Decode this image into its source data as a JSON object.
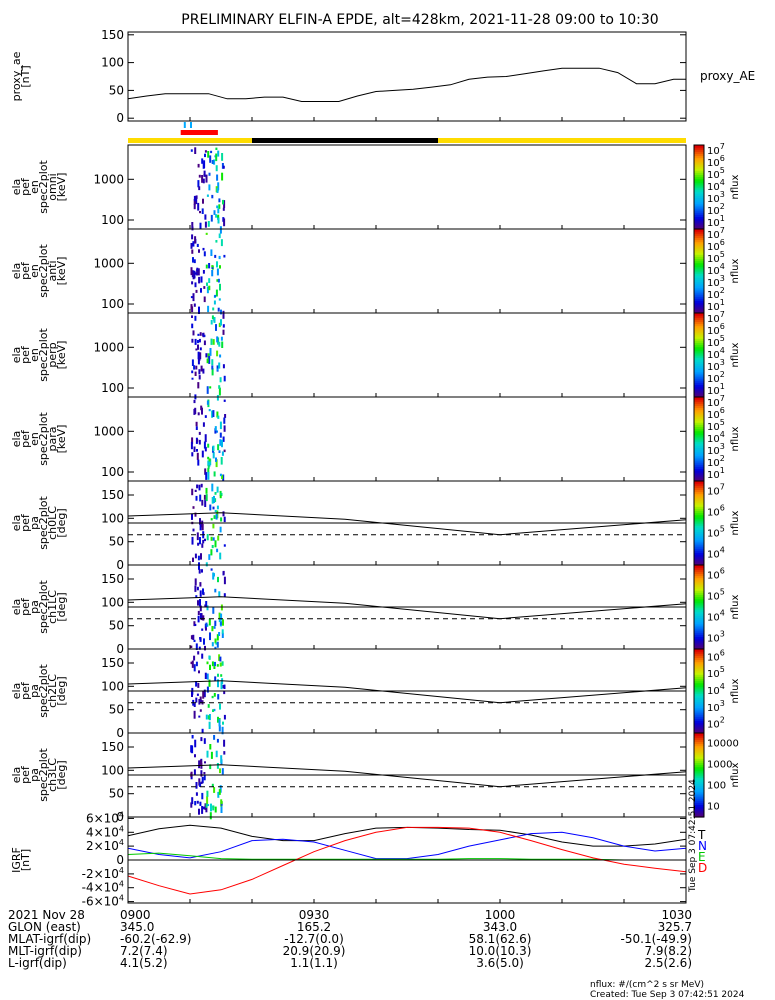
{
  "title": "PRELIMINARY ELFIN-A EPDE, alt=428km, 2021-11-28 09:00 to 10:30",
  "chart_data": [
    {
      "id": "proxy_ae",
      "type": "line",
      "ylabel": [
        "proxy_ae",
        "[nT]"
      ],
      "legend": "proxy_AE",
      "ylim": [
        -5,
        155
      ],
      "yticks": [
        "0",
        "50",
        "100",
        "150"
      ],
      "x_minutes": [
        0,
        3,
        6,
        10,
        13,
        16,
        19,
        22,
        25,
        28,
        31,
        34,
        37,
        40,
        43,
        46,
        49,
        52,
        55,
        58,
        61,
        64,
        67,
        70,
        73,
        76,
        79,
        82,
        85,
        88,
        90
      ],
      "values": [
        35,
        40,
        44,
        44,
        44,
        35,
        35,
        38,
        38,
        30,
        30,
        30,
        40,
        48,
        50,
        52,
        56,
        60,
        70,
        74,
        75,
        80,
        85,
        90,
        90,
        90,
        82,
        62,
        62,
        70,
        70
      ]
    },
    {
      "id": "ela_pef_en_spec2plot_omni",
      "type": "heatmap",
      "ylabel": [
        "ela",
        "pef",
        "en",
        "spec2plot",
        "omni",
        "[keV]"
      ],
      "scale": "log",
      "ylim": [
        60,
        7000
      ],
      "yticks": [
        "100",
        "1000"
      ],
      "colorbar": {
        "label": "nflux",
        "ticks": [
          "10^1",
          "10^2",
          "10^3",
          "10^4",
          "10^5",
          "10^6",
          "10^7"
        ]
      }
    },
    {
      "id": "ela_pef_en_spec2plot_anti",
      "type": "heatmap",
      "ylabel": [
        "ela",
        "pef",
        "en",
        "spec2plot",
        "anti",
        "[keV]"
      ],
      "scale": "log",
      "ylim": [
        60,
        7000
      ],
      "yticks": [
        "100",
        "1000"
      ],
      "colorbar": {
        "label": "nflux",
        "ticks": [
          "10^1",
          "10^2",
          "10^3",
          "10^4",
          "10^5",
          "10^6",
          "10^7"
        ]
      }
    },
    {
      "id": "ela_pef_en_spec2plot_perp",
      "type": "heatmap",
      "ylabel": [
        "ela",
        "pef",
        "en",
        "spec2plot",
        "perp",
        "[keV]"
      ],
      "scale": "log",
      "ylim": [
        60,
        7000
      ],
      "yticks": [
        "100",
        "1000"
      ],
      "colorbar": {
        "label": "nflux",
        "ticks": [
          "10^1",
          "10^2",
          "10^3",
          "10^4",
          "10^5",
          "10^6",
          "10^7"
        ]
      }
    },
    {
      "id": "ela_pef_en_spec2plot_para",
      "type": "heatmap",
      "ylabel": [
        "ela",
        "pef",
        "en",
        "spec2plot",
        "para",
        "[keV]"
      ],
      "scale": "log",
      "ylim": [
        60,
        7000
      ],
      "yticks": [
        "100",
        "1000"
      ],
      "colorbar": {
        "label": "nflux",
        "ticks": [
          "10^1",
          "10^2",
          "10^3",
          "10^4",
          "10^5",
          "10^6",
          "10^7"
        ]
      }
    },
    {
      "id": "ela_pef_pa_spec2plot_ch0LC",
      "type": "heatmap",
      "ylabel": [
        "ela",
        "pef",
        "pa",
        "spec2plot",
        "ch0LC",
        "[deg]"
      ],
      "ylim": [
        0,
        180
      ],
      "yticks": [
        "0",
        "50",
        "100",
        "150"
      ],
      "colorbar": {
        "label": "nflux",
        "ticks": [
          "10^4",
          "10^5",
          "10^6",
          "10^7"
        ]
      }
    },
    {
      "id": "ela_pef_pa_spec2plot_ch1LC",
      "type": "heatmap",
      "ylabel": [
        "ela",
        "pef",
        "pa",
        "spec2plot",
        "ch1LC",
        "[deg]"
      ],
      "ylim": [
        0,
        180
      ],
      "yticks": [
        "0",
        "50",
        "100",
        "150"
      ],
      "colorbar": {
        "label": "nflux",
        "ticks": [
          "10^3",
          "10^4",
          "10^5",
          "10^6"
        ]
      }
    },
    {
      "id": "ela_pef_pa_spec2plot_ch2LC",
      "type": "heatmap",
      "ylabel": [
        "ela",
        "pef",
        "pa",
        "spec2plot",
        "ch2LC",
        "[deg]"
      ],
      "ylim": [
        0,
        180
      ],
      "yticks": [
        "0",
        "50",
        "100",
        "150"
      ],
      "colorbar": {
        "label": "nflux",
        "ticks": [
          "10^2",
          "10^3",
          "10^4",
          "10^5",
          "10^6"
        ]
      }
    },
    {
      "id": "ela_pef_pa_spec2plot_ch3LC",
      "type": "heatmap",
      "ylabel": [
        "ela",
        "pef",
        "pa",
        "spec2plot",
        "ch3LC",
        "[deg]"
      ],
      "ylim": [
        0,
        180
      ],
      "yticks": [
        "0",
        "50",
        "100",
        "150"
      ],
      "colorbar": {
        "label": "nflux",
        "ticks": [
          "10",
          "100",
          "1000",
          "10000"
        ]
      }
    },
    {
      "id": "igrf",
      "type": "line",
      "ylabel": [
        "IGRF",
        "[nT]"
      ],
      "ylim": [
        -62000,
        62000
      ],
      "yticks": [
        "6×10^4",
        "4×10^4",
        "2×10^4",
        "0",
        "-2×10^4",
        "-4×10^4",
        "-6×10^4"
      ],
      "legend": [
        "T",
        "N",
        "E",
        "D"
      ],
      "series_colors": [
        "#000000",
        "#0000ff",
        "#00c800",
        "#ff0000"
      ],
      "x_minutes": [
        0,
        5,
        10,
        15,
        20,
        25,
        30,
        35,
        40,
        45,
        50,
        55,
        60,
        65,
        70,
        75,
        80,
        85,
        90
      ],
      "series": [
        {
          "name": "T",
          "values": [
            35000,
            45000,
            50000,
            46000,
            34000,
            28000,
            28000,
            38000,
            46000,
            47000,
            46000,
            44000,
            43000,
            36000,
            26000,
            20000,
            20000,
            23000,
            30000
          ]
        },
        {
          "name": "N",
          "values": [
            17000,
            8000,
            3000,
            12000,
            28000,
            30000,
            26000,
            14000,
            2000,
            2000,
            8000,
            20000,
            29000,
            38000,
            40000,
            32000,
            20000,
            13000,
            17000
          ]
        },
        {
          "name": "E",
          "values": [
            8000,
            10000,
            6000,
            2000,
            1000,
            1000,
            1000,
            1000,
            1000,
            1000,
            1000,
            2000,
            2000,
            1000,
            1000,
            1000,
            0,
            0,
            0
          ]
        },
        {
          "name": "D",
          "values": [
            -23000,
            -37000,
            -49000,
            -43000,
            -28000,
            -8000,
            12000,
            28000,
            40000,
            47000,
            47000,
            46000,
            40000,
            28000,
            15000,
            3000,
            -6000,
            -12000,
            -17000
          ]
        }
      ]
    }
  ],
  "bar": {
    "segments": [
      {
        "start": 0,
        "end": 20,
        "color": "#ffdc00"
      },
      {
        "start": 20,
        "end": 50,
        "color": "#000000"
      },
      {
        "start": 50,
        "end": 90,
        "color": "#ffdc00"
      }
    ],
    "red_interval": [
      8.5,
      14.5
    ],
    "blue_marks": [
      9,
      10
    ]
  },
  "colors": {
    "line": "#000000",
    "yellow": "#ffdc00",
    "red": "#ff0000",
    "blue": "#00aaff"
  },
  "axis_info": {
    "rows": [
      {
        "label": "2021 Nov 28",
        "values": [
          "0900",
          "0930",
          "1000",
          "1030"
        ]
      },
      {
        "label": "GLON (east)",
        "values": [
          "345.0",
          "165.2",
          "343.0",
          "325.7"
        ]
      },
      {
        "label": "MLAT-igrf(dip)",
        "values": [
          "-60.2(-62.9)",
          "-12.7(0.0)",
          "58.1(62.6)",
          "-50.1(-49.9)"
        ]
      },
      {
        "label": "MLT-igrf(dip)",
        "values": [
          "7.2(7.4)",
          "20.9(20.9)",
          "10.0(10.3)",
          "7.9(8.2)"
        ]
      },
      {
        "label": "L-igrf(dip)",
        "values": [
          "4.1(5.2)",
          "1.1(1.1)",
          "3.6(5.0)",
          "2.5(2.6)"
        ]
      }
    ],
    "times": [
      0,
      30,
      60,
      90
    ]
  },
  "footer": {
    "units": "nflux: #/(cm^2 s sr MeV)",
    "created": "Created: Tue Sep  3 07:42:51 2024",
    "side_stamp": "Tue Sep  3 07:42:51 2024"
  }
}
